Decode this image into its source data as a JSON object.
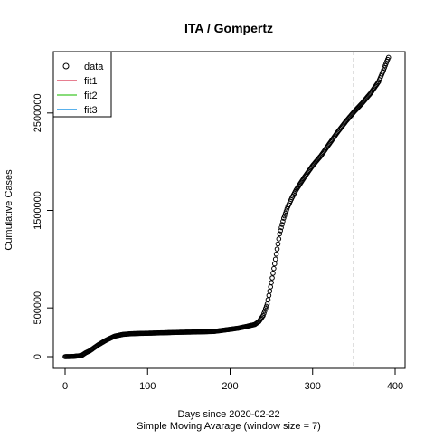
{
  "chart_data": {
    "type": "scatter",
    "title": "ITA / Gompertz",
    "xlabel": "Days since 2020-02-22",
    "xlabel_sub": "Simple Moving Avarage (window size = 7)",
    "ylabel": "Cumulative Cases",
    "xlim": [
      0,
      400
    ],
    "ylim": [
      0,
      3000000
    ],
    "x_ticks": [
      0,
      100,
      200,
      300,
      400
    ],
    "x_tick_labels": [
      "0",
      "100",
      "200",
      "300",
      "400"
    ],
    "y_ticks": [
      0,
      500000,
      1500000,
      2500000
    ],
    "y_tick_labels": [
      "0",
      "500000",
      "1500000",
      "2500000"
    ],
    "vline_x": 350,
    "legend_position": "top-left",
    "legend": [
      {
        "label": "data",
        "kind": "point",
        "color": "#000000"
      },
      {
        "label": "fit1",
        "kind": "line",
        "color": "#df536b"
      },
      {
        "label": "fit2",
        "kind": "line",
        "color": "#61d04f"
      },
      {
        "label": "fit3",
        "kind": "line",
        "color": "#2297e6"
      }
    ],
    "series": [
      {
        "name": "data",
        "x": [
          0,
          10,
          20,
          25,
          30,
          40,
          50,
          60,
          70,
          80,
          90,
          100,
          120,
          140,
          160,
          180,
          200,
          210,
          220,
          230,
          235,
          240,
          245,
          250,
          255,
          260,
          265,
          270,
          275,
          280,
          290,
          300,
          310,
          320,
          330,
          340,
          350,
          360,
          370,
          380,
          385,
          390,
          392
        ],
        "y": [
          0,
          2000,
          12000,
          40000,
          60000,
          120000,
          170000,
          210000,
          228000,
          235000,
          238000,
          240000,
          245000,
          250000,
          253000,
          258000,
          280000,
          292000,
          310000,
          330000,
          360000,
          420000,
          540000,
          760000,
          1000000,
          1260000,
          1420000,
          1540000,
          1630000,
          1710000,
          1840000,
          1960000,
          2060000,
          2180000,
          2300000,
          2410000,
          2510000,
          2600000,
          2700000,
          2820000,
          2920000,
          3030000,
          3070000
        ]
      }
    ]
  }
}
